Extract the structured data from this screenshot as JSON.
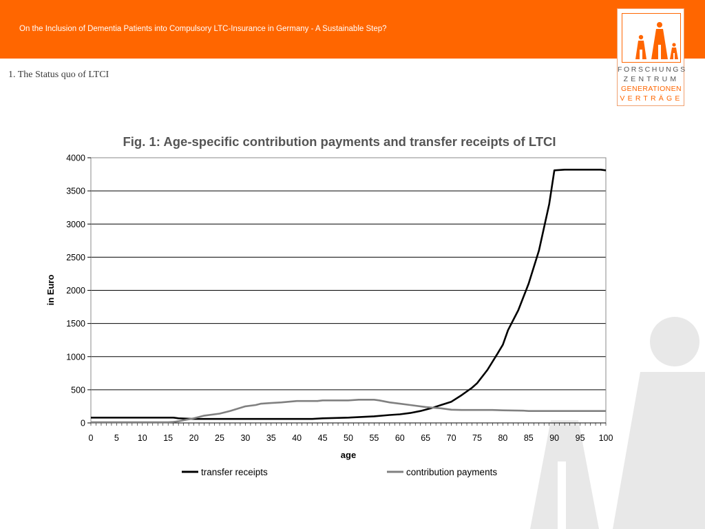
{
  "header": {
    "text": "On the Inclusion of Dementia Patients into Compulsory LTC-Insurance in Germany - A Sustainable Step?",
    "background_color": "#ff6600"
  },
  "logo": {
    "lines": [
      "FORSCHUNGS",
      "ZENTRUM",
      "GENERATIONEN",
      "VERTRÄGE"
    ],
    "accent_color": "#ff6600"
  },
  "section": {
    "title": "1.  The Status quo of LTCI"
  },
  "chart_data": {
    "type": "line",
    "title": "Fig. 1: Age-specific contribution payments and transfer receipts of LTCI",
    "xlabel": "age",
    "ylabel": "in Euro",
    "xlim": [
      0,
      100
    ],
    "ylim": [
      0,
      4000
    ],
    "x_ticks": [
      0,
      5,
      10,
      15,
      20,
      25,
      30,
      35,
      40,
      45,
      50,
      55,
      60,
      65,
      70,
      75,
      80,
      85,
      90,
      95,
      100
    ],
    "y_ticks": [
      0,
      500,
      1000,
      1500,
      2000,
      2500,
      3000,
      3500,
      4000
    ],
    "grid": "horizontal",
    "legend_position": "bottom",
    "series": [
      {
        "name": "transfer receipts",
        "color": "#000000",
        "x": [
          0,
          5,
          10,
          15,
          16,
          17,
          20,
          25,
          30,
          35,
          40,
          43,
          45,
          50,
          55,
          58,
          60,
          62,
          64,
          66,
          68,
          70,
          72,
          74,
          75,
          77,
          79,
          80,
          81,
          83,
          85,
          87,
          89,
          90,
          92,
          95,
          99,
          100
        ],
        "values": [
          80,
          80,
          80,
          80,
          80,
          70,
          60,
          60,
          60,
          60,
          60,
          60,
          70,
          80,
          100,
          120,
          130,
          150,
          180,
          220,
          270,
          320,
          420,
          530,
          600,
          800,
          1050,
          1180,
          1400,
          1700,
          2100,
          2600,
          3300,
          3810,
          3820,
          3820,
          3820,
          3810
        ]
      },
      {
        "name": "contribution payments",
        "color": "#808080",
        "x": [
          0,
          5,
          10,
          15,
          16,
          17,
          18,
          19,
          20,
          22,
          25,
          27,
          30,
          32,
          33,
          35,
          37,
          40,
          44,
          45,
          50,
          52,
          55,
          56,
          58,
          60,
          62,
          65,
          68,
          70,
          72,
          75,
          78,
          80,
          84,
          85,
          90,
          95,
          100
        ],
        "values": [
          10,
          10,
          10,
          10,
          15,
          25,
          40,
          55,
          70,
          110,
          140,
          180,
          250,
          270,
          290,
          300,
          310,
          330,
          330,
          340,
          340,
          350,
          350,
          340,
          310,
          290,
          270,
          240,
          220,
          200,
          195,
          195,
          195,
          190,
          185,
          180,
          180,
          180,
          180
        ]
      }
    ]
  }
}
